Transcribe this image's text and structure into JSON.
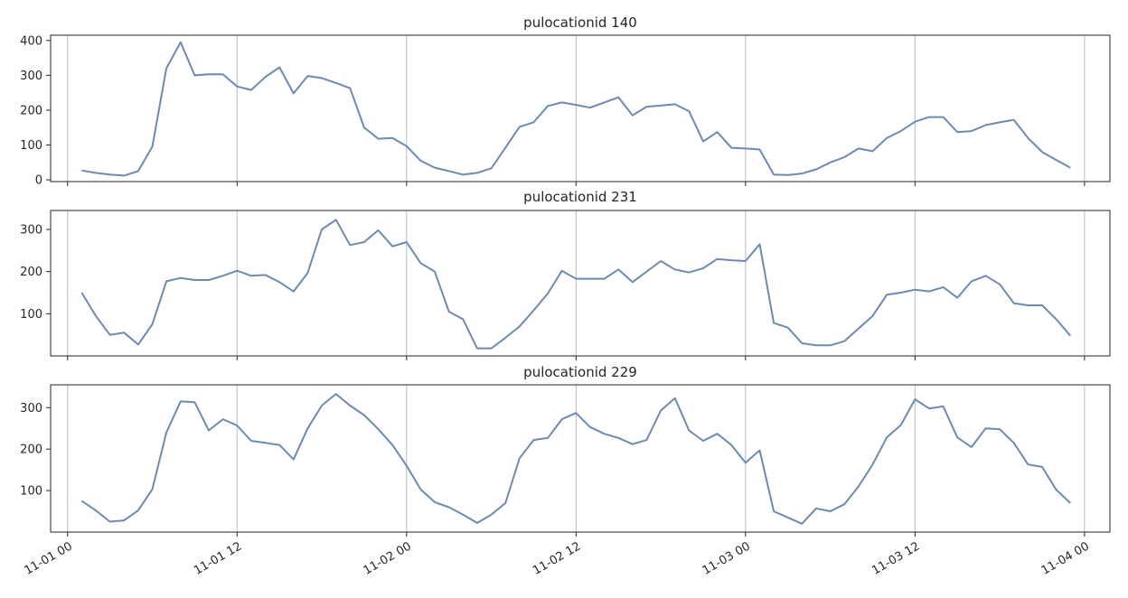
{
  "chart_data": [
    {
      "type": "line",
      "title": "pulocationid 140",
      "xlabel": "",
      "ylabel": "",
      "ylim": [
        -5,
        415
      ],
      "yticks": [
        0,
        100,
        200,
        300,
        400
      ],
      "x_start_hours": 1.0,
      "x_step_hours": 1.0,
      "values": [
        27,
        20,
        15,
        12,
        25,
        95,
        320,
        395,
        300,
        303,
        303,
        268,
        258,
        295,
        323,
        248,
        298,
        292,
        278,
        263,
        150,
        118,
        120,
        97,
        55,
        35,
        25,
        15,
        20,
        33,
        92,
        152,
        165,
        212,
        222,
        215,
        207,
        222,
        237,
        185,
        210,
        213,
        217,
        197,
        110,
        137,
        92,
        90,
        87,
        15,
        14,
        18,
        30,
        50,
        65,
        90,
        82,
        120,
        140,
        167,
        180,
        180,
        137,
        140,
        157,
        165,
        172,
        120,
        80,
        57,
        35
      ],
      "grid": "x"
    },
    {
      "type": "line",
      "title": "pulocationid 231",
      "xlabel": "",
      "ylabel": "",
      "ylim": [
        0,
        345
      ],
      "yticks": [
        100,
        200,
        300
      ],
      "x_start_hours": 1.0,
      "x_step_hours": 1.0,
      "values": [
        150,
        95,
        50,
        55,
        27,
        75,
        177,
        185,
        180,
        180,
        190,
        202,
        190,
        192,
        175,
        153,
        197,
        300,
        323,
        263,
        270,
        298,
        260,
        270,
        220,
        200,
        105,
        87,
        18,
        18,
        43,
        70,
        108,
        148,
        202,
        183,
        183,
        183,
        205,
        175,
        200,
        225,
        205,
        198,
        208,
        230,
        227,
        225,
        265,
        78,
        67,
        30,
        25,
        25,
        35,
        65,
        95,
        145,
        150,
        157,
        153,
        163,
        138,
        177,
        190,
        170,
        125,
        120,
        120,
        87,
        48
      ],
      "grid": "x"
    },
    {
      "type": "line",
      "title": "pulocationid 229",
      "xlabel": "",
      "ylabel": "",
      "ylim": [
        0,
        355
      ],
      "yticks": [
        100,
        200,
        300
      ],
      "x_start_hours": 1.0,
      "x_step_hours": 1.0,
      "values": [
        75,
        52,
        25,
        28,
        52,
        103,
        240,
        315,
        313,
        245,
        272,
        257,
        220,
        215,
        210,
        175,
        250,
        305,
        333,
        305,
        282,
        248,
        210,
        160,
        103,
        72,
        60,
        42,
        22,
        42,
        70,
        178,
        222,
        227,
        272,
        287,
        253,
        237,
        227,
        212,
        222,
        293,
        323,
        245,
        220,
        237,
        210,
        167,
        197,
        50,
        35,
        20,
        57,
        50,
        67,
        110,
        163,
        228,
        258,
        320,
        298,
        303,
        228,
        205,
        250,
        248,
        215,
        163,
        157,
        102,
        70
      ],
      "grid": "x"
    }
  ],
  "x_axis": {
    "tick_hours": [
      0,
      12,
      24,
      36,
      48,
      60,
      72
    ],
    "tick_labels": [
      "11-01 00",
      "11-01 12",
      "11-02 00",
      "11-02 12",
      "11-03 00",
      "11-03 12",
      "11-04 00"
    ],
    "range_hours": [
      -1.2,
      73.8
    ]
  },
  "colors": {
    "line": "#6b8bb1",
    "grid": "#b0bcd0",
    "frame": "#262626"
  }
}
